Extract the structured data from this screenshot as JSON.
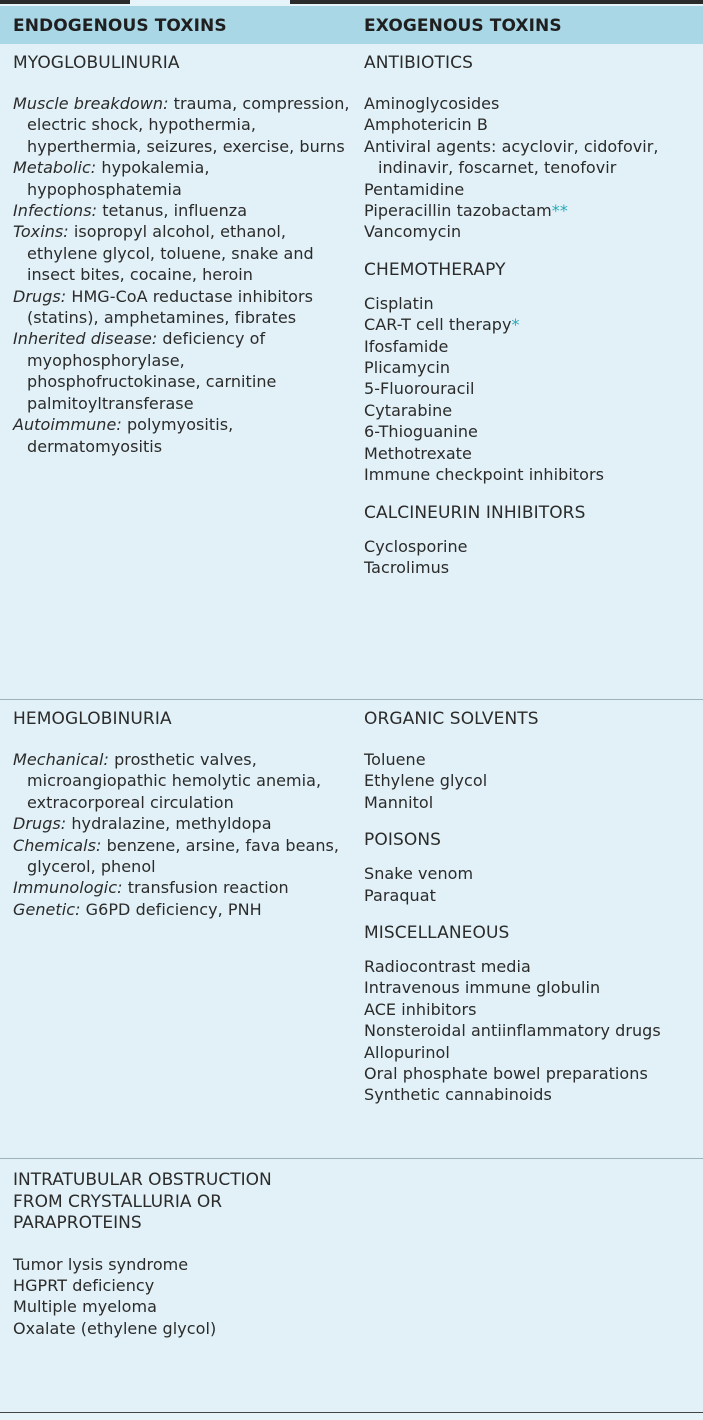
{
  "header": {
    "left": "ENDOGENOUS TOXINS",
    "right": "EXOGENOUS TOXINS"
  },
  "row1": {
    "left": {
      "title": "MYOGLOBULINURIA",
      "items": [
        {
          "label": "Muscle breakdown:",
          "text": " trauma, compression, electric shock, hypothermia, hyperthermia, seizures, exercise, burns"
        },
        {
          "label": "Metabolic:",
          "text": " hypokalemia, hypophosphatemia"
        },
        {
          "label": "Infections:",
          "text": " tetanus, influenza"
        },
        {
          "label": "Toxins:",
          "text": " isopropyl alcohol, ethanol, ethylene glycol, toluene, snake and insect bites, cocaine, heroin"
        },
        {
          "label": "Drugs:",
          "text": " HMG-CoA reductase inhibitors (statins), amphetamines, fibrates"
        },
        {
          "label": "Inherited disease:",
          "text": " deficiency of myophosphorylase, phosphofructokinase, carnitine palmitoyltransferase"
        },
        {
          "label": "Autoimmune:",
          "text": " polymyositis, dermatomyositis"
        }
      ]
    },
    "right": {
      "groups": [
        {
          "title": "ANTIBIOTICS",
          "items": [
            {
              "text": "Aminoglycosides",
              "mark": ""
            },
            {
              "text": "Amphotericin B",
              "mark": ""
            },
            {
              "text": "Antiviral agents: acyclovir, cidofovir, indinavir, foscarnet, tenofovir",
              "mark": ""
            },
            {
              "text": "Pentamidine",
              "mark": ""
            },
            {
              "text": "Piperacillin tazobactam",
              "mark": "**"
            },
            {
              "text": "Vancomycin",
              "mark": ""
            }
          ]
        },
        {
          "title": "CHEMOTHERAPY",
          "items": [
            {
              "text": "Cisplatin",
              "mark": ""
            },
            {
              "text": "CAR-T cell therapy",
              "mark": "*"
            },
            {
              "text": "Ifosfamide",
              "mark": ""
            },
            {
              "text": "Plicamycin",
              "mark": ""
            },
            {
              "text": "5-Fluorouracil",
              "mark": ""
            },
            {
              "text": "Cytarabine",
              "mark": ""
            },
            {
              "text": "6-Thioguanine",
              "mark": ""
            },
            {
              "text": "Methotrexate",
              "mark": ""
            },
            {
              "text": "Immune checkpoint inhibitors",
              "mark": ""
            }
          ]
        },
        {
          "title": "CALCINEURIN INHIBITORS",
          "items": [
            {
              "text": "Cyclosporine",
              "mark": ""
            },
            {
              "text": "Tacrolimus",
              "mark": ""
            }
          ]
        }
      ]
    }
  },
  "row2": {
    "left": {
      "title": "HEMOGLOBINURIA",
      "items": [
        {
          "label": "Mechanical:",
          "text": " prosthetic valves, microangiopathic hemolytic anemia, extracorporeal circulation"
        },
        {
          "label": "Drugs:",
          "text": " hydralazine, methyldopa"
        },
        {
          "label": "Chemicals:",
          "text": " benzene, arsine, fava beans, glycerol, phenol"
        },
        {
          "label": "Immunologic:",
          "text": " transfusion reaction"
        },
        {
          "label": "Genetic:",
          "text": " G6PD deficiency, PNH"
        }
      ]
    },
    "right": {
      "groups": [
        {
          "title": "ORGANIC SOLVENTS",
          "items": [
            {
              "text": "Toluene",
              "mark": ""
            },
            {
              "text": "Ethylene glycol",
              "mark": ""
            },
            {
              "text": "Mannitol",
              "mark": ""
            }
          ]
        },
        {
          "title": "POISONS",
          "items": [
            {
              "text": "Snake venom",
              "mark": ""
            },
            {
              "text": "Paraquat",
              "mark": ""
            }
          ]
        },
        {
          "title": "MISCELLANEOUS",
          "items": [
            {
              "text": "Radiocontrast media",
              "mark": ""
            },
            {
              "text": "Intravenous immune globulin",
              "mark": ""
            },
            {
              "text": "ACE inhibitors",
              "mark": ""
            },
            {
              "text": "Nonsteroidal antiinflammatory drugs",
              "mark": ""
            },
            {
              "text": "Allopurinol",
              "mark": ""
            },
            {
              "text": "Oral phosphate bowel preparations",
              "mark": ""
            },
            {
              "text": "Synthetic cannabinoids",
              "mark": ""
            }
          ]
        }
      ]
    }
  },
  "row3": {
    "left": {
      "title_lines": [
        "INTRATUBULAR OBSTRUCTION",
        "FROM CRYSTALLURIA OR",
        "PARAPROTEINS"
      ],
      "items": [
        "Tumor lysis syndrome",
        "HGPRT deficiency",
        "Multiple myeloma",
        "Oxalate (ethylene glycol)"
      ]
    }
  }
}
